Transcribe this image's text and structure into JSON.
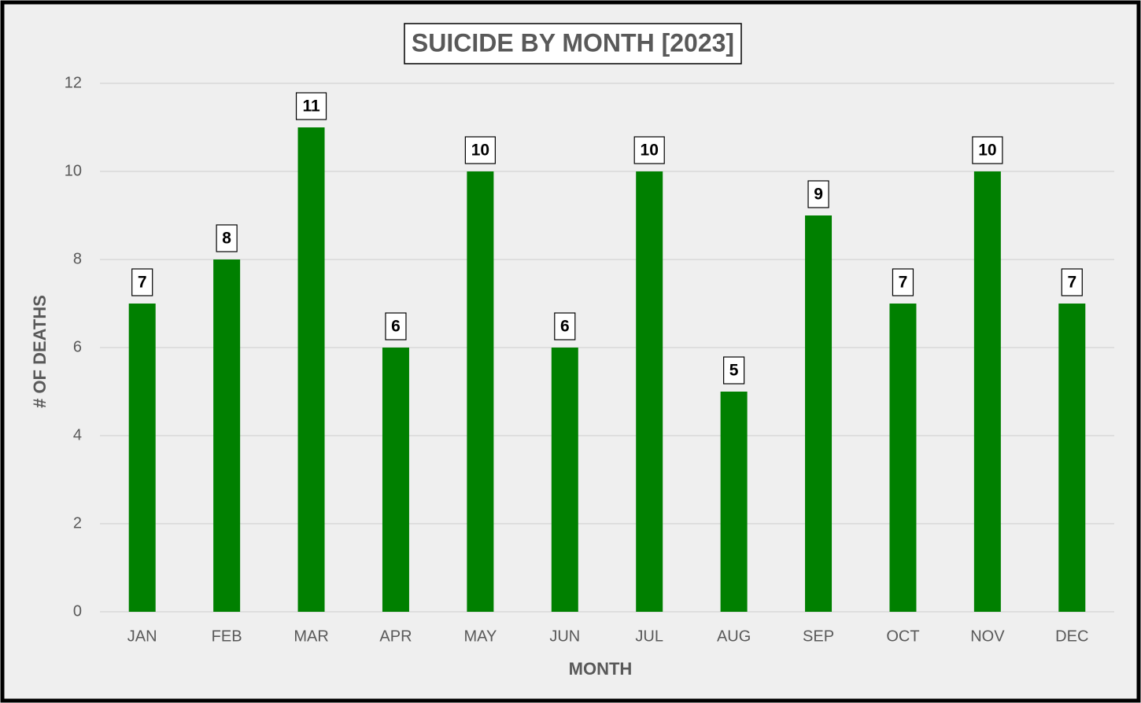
{
  "chart_data": {
    "type": "bar",
    "title": "SUICIDE BY MONTH [2023]",
    "x_label": "MONTH",
    "y_label": "# OF DEATHS",
    "categories": [
      "JAN",
      "FEB",
      "MAR",
      "APR",
      "MAY",
      "JUN",
      "JUL",
      "AUG",
      "SEP",
      "OCT",
      "NOV",
      "DEC"
    ],
    "values": [
      7,
      8,
      11,
      6,
      10,
      6,
      10,
      5,
      9,
      7,
      10,
      7
    ],
    "color": "#008000",
    "ylim": [
      0,
      12
    ],
    "yticks": [
      0,
      2,
      4,
      6,
      8,
      10,
      12
    ],
    "grid": true
  }
}
